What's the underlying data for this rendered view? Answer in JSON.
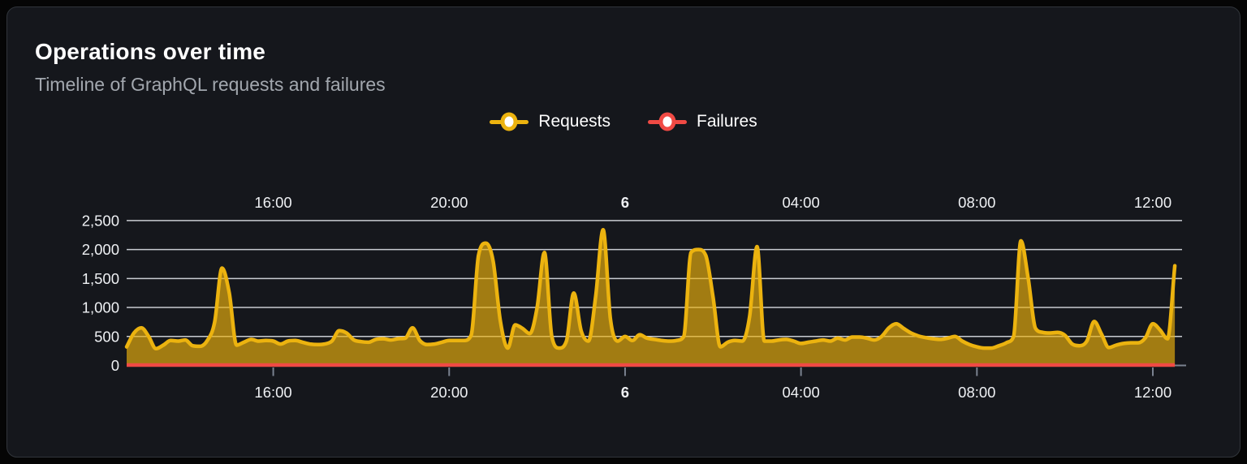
{
  "card": {
    "title": "Operations over time",
    "subtitle": "Timeline of GraphQL requests and failures"
  },
  "legend": [
    {
      "label": "Requests",
      "color": "#ECB30F"
    },
    {
      "label": "Failures",
      "color": "#F04A44"
    }
  ],
  "colors": {
    "page_background": "#050505",
    "card_background": "#15171C",
    "card_border": "#31353B",
    "title_text": "#FFFFFF",
    "subtitle_text": "#A2A7AE",
    "axis_text": "#EEF0F3",
    "gridline": "#D9DCE2",
    "axis_line": "#7A8290",
    "requests_stroke": "#ECB30F",
    "requests_fill": "rgba(235,178,14,0.66)",
    "failures_stroke": "#F04A44"
  },
  "chart_data": {
    "type": "area",
    "title": "Operations over time",
    "subtitle": "Timeline of GraphQL requests and failures",
    "grid": true,
    "legend_position": "top-center",
    "x_axis": {
      "start_time": "12:40",
      "step_minutes": 10,
      "ticks": [
        {
          "label": "16:00",
          "index": 20,
          "bold": false
        },
        {
          "label": "20:00",
          "index": 44,
          "bold": false
        },
        {
          "label": "6",
          "index": 68,
          "bold": true
        },
        {
          "label": "04:00",
          "index": 92,
          "bold": false
        },
        {
          "label": "08:00",
          "index": 116,
          "bold": false
        },
        {
          "label": "12:00",
          "index": 140,
          "bold": false
        }
      ]
    },
    "y_axis": {
      "range": [
        0,
        2500
      ],
      "ticks": [
        {
          "label": "0",
          "value": 0
        },
        {
          "label": "500",
          "value": 500
        },
        {
          "label": "1,000",
          "value": 1000
        },
        {
          "label": "1,500",
          "value": 1500
        },
        {
          "label": "2,000",
          "value": 2000
        },
        {
          "label": "2,500",
          "value": 2500
        }
      ]
    },
    "series": [
      {
        "name": "Requests",
        "color": "#ECB30F",
        "fill": "rgba(235,178,14,0.66)",
        "values": [
          320,
          560,
          650,
          500,
          290,
          350,
          430,
          420,
          440,
          340,
          330,
          430,
          740,
          1680,
          1250,
          350,
          400,
          450,
          420,
          430,
          420,
          370,
          420,
          430,
          400,
          370,
          360,
          370,
          420,
          600,
          560,
          440,
          410,
          400,
          450,
          460,
          440,
          460,
          470,
          650,
          430,
          360,
          370,
          400,
          430,
          430,
          430,
          520,
          1900,
          2110,
          1800,
          750,
          300,
          700,
          640,
          550,
          1000,
          1950,
          500,
          300,
          420,
          1250,
          600,
          420,
          1200,
          2340,
          800,
          420,
          500,
          430,
          530,
          470,
          450,
          430,
          420,
          430,
          500,
          1950,
          2000,
          1900,
          1180,
          320,
          400,
          430,
          420,
          850,
          2050,
          420,
          420,
          440,
          450,
          420,
          380,
          400,
          420,
          440,
          420,
          470,
          440,
          490,
          490,
          470,
          440,
          500,
          650,
          720,
          640,
          560,
          510,
          480,
          460,
          450,
          470,
          500,
          420,
          360,
          320,
          300,
          300,
          340,
          390,
          500,
          2150,
          1500,
          640,
          570,
          560,
          570,
          520,
          370,
          340,
          420,
          760,
          540,
          310,
          350,
          380,
          390,
          390,
          480,
          720,
          610,
          460,
          1720
        ]
      },
      {
        "name": "Failures",
        "color": "#F04A44",
        "values": [
          0,
          0,
          0,
          0,
          0,
          0,
          0,
          0,
          0,
          0,
          0,
          0,
          0,
          0,
          0,
          0,
          0,
          0,
          0,
          0,
          0,
          0,
          0,
          0,
          0,
          0,
          0,
          0,
          0,
          0,
          0,
          0,
          0,
          0,
          0,
          0,
          0,
          0,
          0,
          0,
          0,
          0,
          0,
          0,
          0,
          0,
          0,
          0,
          0,
          0,
          0,
          0,
          0,
          0,
          0,
          0,
          0,
          0,
          0,
          0,
          0,
          0,
          0,
          0,
          0,
          0,
          0,
          0,
          0,
          0,
          0,
          0,
          0,
          0,
          0,
          0,
          0,
          0,
          0,
          0,
          0,
          0,
          0,
          0,
          0,
          0,
          0,
          0,
          0,
          0,
          0,
          0,
          0,
          0,
          0,
          0,
          0,
          0,
          0,
          0,
          0,
          0,
          0,
          0,
          0,
          0,
          0,
          0,
          0,
          0,
          0,
          0,
          0,
          0,
          0,
          0,
          0,
          0,
          0,
          0,
          0,
          0,
          0,
          0,
          0,
          0,
          0,
          0,
          0,
          0,
          0,
          0,
          0,
          0,
          0,
          0,
          0,
          0,
          0,
          0,
          0,
          0,
          0,
          0
        ]
      }
    ]
  }
}
